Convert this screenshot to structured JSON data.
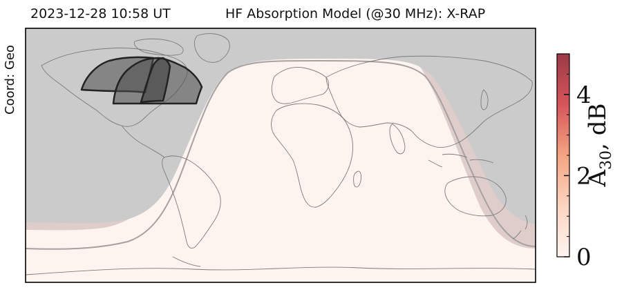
{
  "header": {
    "timestamp": "2023-12-28 10:58 UT",
    "title": "HF Absorption Model (@30 MHz): X-RAP"
  },
  "side_label": "Coord: Geo",
  "colorbar": {
    "label_base": "A",
    "label_sub": "30",
    "label_unit": ", dB",
    "ticks": [
      {
        "value": 0,
        "label": "0"
      },
      {
        "value": 2,
        "label": "2"
      },
      {
        "value": 4,
        "label": "4"
      }
    ],
    "range": [
      0,
      5
    ],
    "color_low": "#fff5f0",
    "color_mid": "#f4a582",
    "color_high": "#9b3a47"
  },
  "map": {
    "projection": "geographic (plate carree)",
    "night_color": "#cdcdcd",
    "day_color": "#fdf4f0",
    "terminator_color": "#9b8e8e",
    "absorption_regions": 3
  }
}
